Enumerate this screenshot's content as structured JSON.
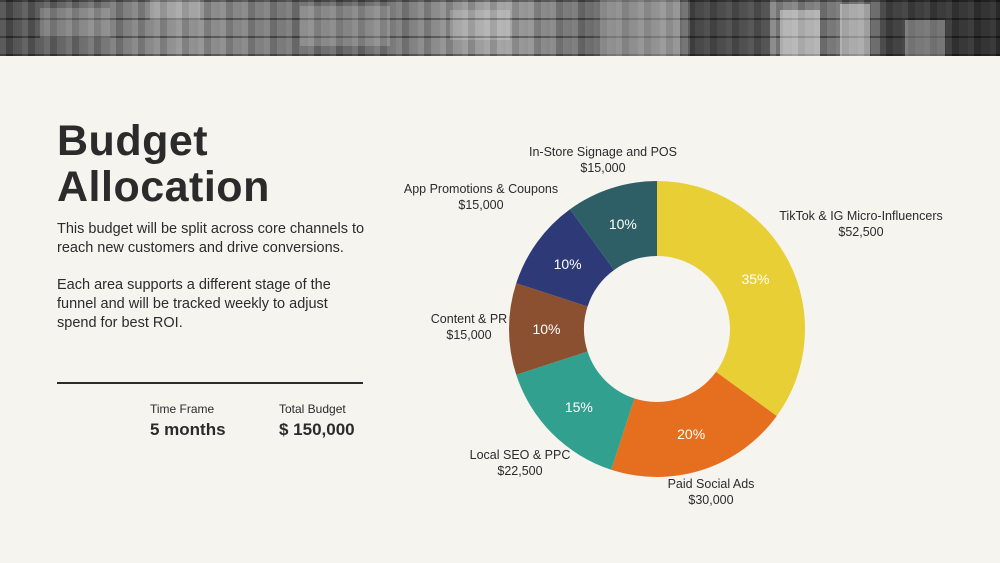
{
  "page": {
    "title_line1": "Budget",
    "title_line2": "Allocation",
    "paragraph1": "This budget will be split across core channels to reach new customers and drive conversions.",
    "paragraph2": "Each area supports a different stage of the funnel and will be tracked weekly to adjust spend for best ROI.",
    "stats": {
      "time_frame_label": "Time Frame",
      "time_frame_value": "5 months",
      "total_budget_label": "Total Budget",
      "total_budget_value": "$ 150,000"
    }
  },
  "chart_data": {
    "type": "pie",
    "donut": true,
    "title": "",
    "slices": [
      {
        "label": "TikTok & IG Micro-Influencers",
        "amount": "$52,500",
        "value": 35,
        "percent_label": "35%",
        "color": "#e8cf36"
      },
      {
        "label": "Paid Social Ads",
        "amount": "$30,000",
        "value": 20,
        "percent_label": "20%",
        "color": "#e56f1f"
      },
      {
        "label": "Local SEO & PPC",
        "amount": "$22,500",
        "value": 15,
        "percent_label": "15%",
        "color": "#32a08f"
      },
      {
        "label": "Content & PR",
        "amount": "$15,000",
        "value": 10,
        "percent_label": "10%",
        "color": "#8b5030"
      },
      {
        "label": "App Promotions & Coupons",
        "amount": "$15,000",
        "value": 10,
        "percent_label": "10%",
        "color": "#2e3a78"
      },
      {
        "label": "In-Store Signage and POS",
        "amount": "$15,000",
        "value": 10,
        "percent_label": "10%",
        "color": "#2f5f66"
      }
    ]
  }
}
